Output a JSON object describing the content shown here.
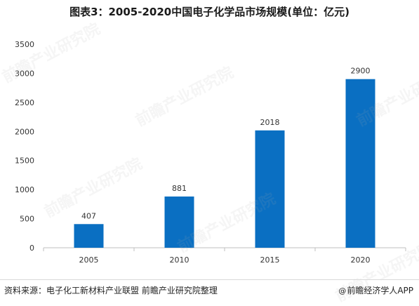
{
  "header": {
    "title": "图表3：2005-2020中国电子化学品市场规模(单位：亿元)"
  },
  "footer": {
    "source": "资料来源：电子化工新材料产业联盟 前瞻产业研究院整理",
    "brand": "前瞻经济学人APP",
    "brand_icon": "@"
  },
  "watermark": {
    "text": "前瞻产业研究院"
  },
  "colors": {
    "bar": "#0a6fc2",
    "axis": "#bfbfbf",
    "text": "#333333"
  },
  "chart_data": {
    "type": "bar",
    "title": "图表3：2005-2020中国电子化学品市场规模(单位：亿元)",
    "categories": [
      "2005",
      "2010",
      "2015",
      "2020"
    ],
    "values": [
      407,
      881,
      2018,
      2900
    ],
    "ylim": [
      0,
      3500
    ],
    "yticks": [
      0,
      500,
      1000,
      1500,
      2000,
      2500,
      3000,
      3500
    ],
    "xlabel": "",
    "ylabel": "",
    "grid": false,
    "legend": "none",
    "data_labels": true
  }
}
